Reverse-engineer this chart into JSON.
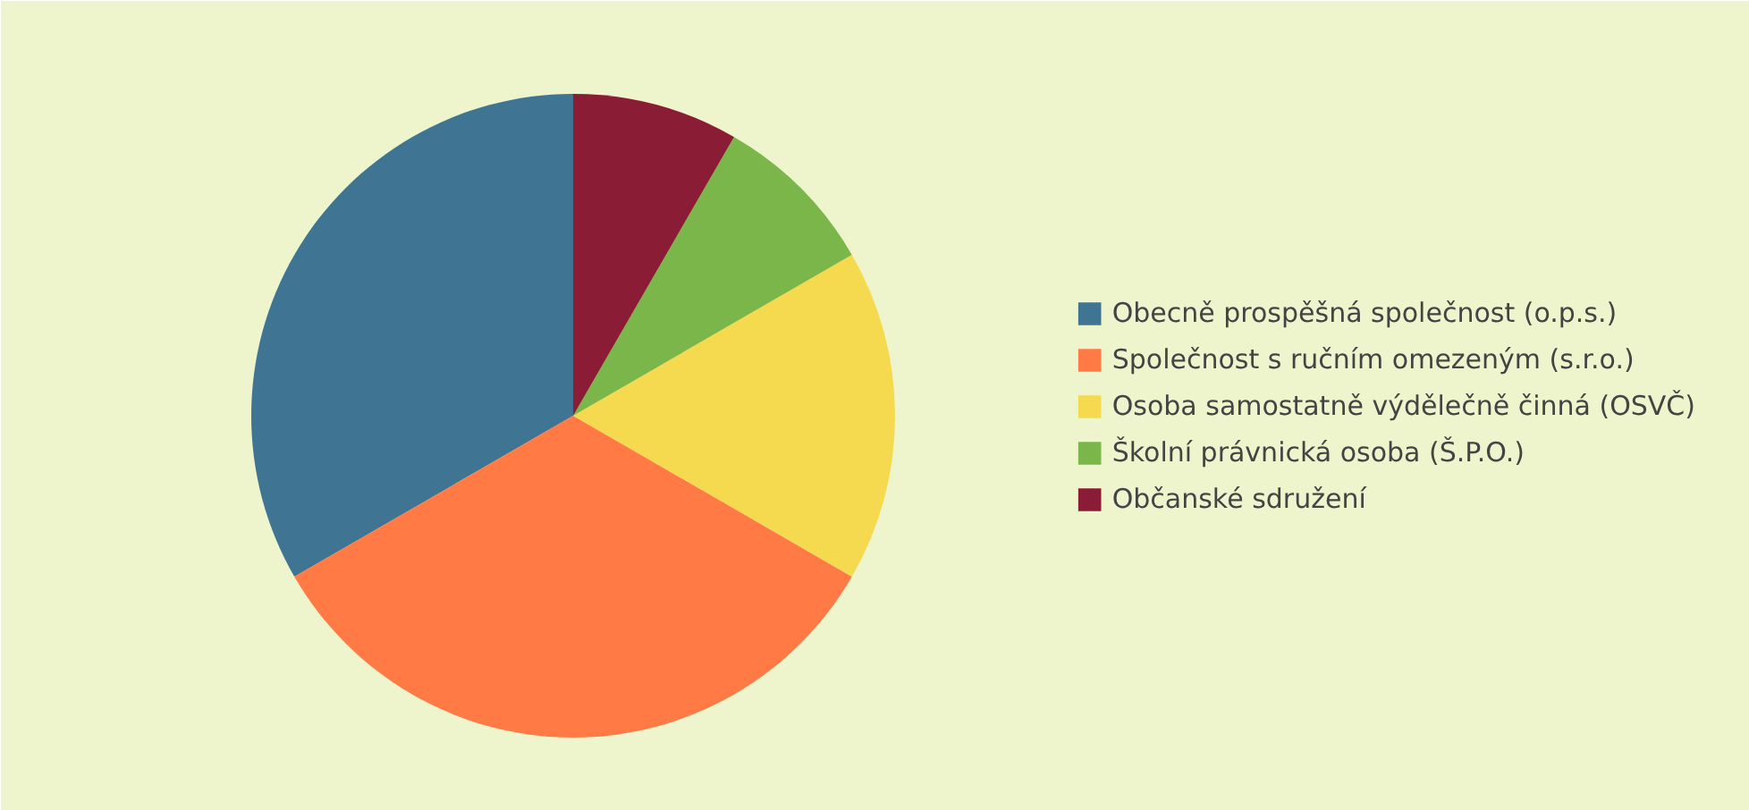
{
  "chart_data": {
    "type": "pie",
    "categories": [
      "Obecně prospěšná společnost (o.p.s.)",
      "Společnost s ručním omezeným (s.r.o.)",
      "Osoba samostatně výdělečně činná (OSVČ)",
      "Školní právnická osoba (Š.P.O.)",
      "Občanské sdružení"
    ],
    "values": [
      33.33,
      33.33,
      16.67,
      8.33,
      8.33
    ],
    "colors": [
      "#3f7592",
      "#ff7a45",
      "#f5da50",
      "#7bb64a",
      "#8a1d35"
    ],
    "legend": "right"
  }
}
